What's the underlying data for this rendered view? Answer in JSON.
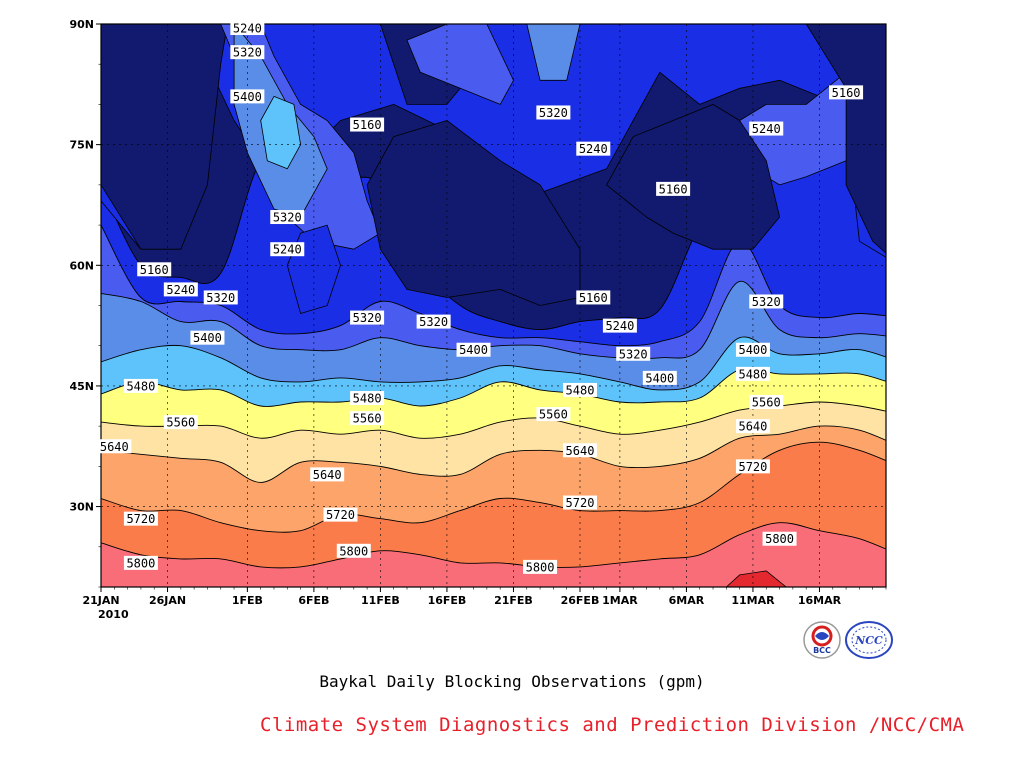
{
  "chart_data": {
    "type": "contour",
    "x_tick_labels": [
      "21JAN",
      "26JAN",
      "1FEB",
      "6FEB",
      "11FEB",
      "16FEB",
      "21FEB",
      "26FEB",
      "1MAR",
      "6MAR",
      "11MAR",
      "16MAR"
    ],
    "x_year_label": "2010",
    "y_tick_labels": [
      "30N",
      "45N",
      "60N",
      "75N",
      "90N"
    ],
    "xlim": [
      "2010-01-21",
      "2010-03-21"
    ],
    "ylim": [
      20,
      90
    ],
    "grid": true,
    "contour_levels": [
      5160,
      5240,
      5320,
      5400,
      5480,
      5560,
      5640,
      5720,
      5800,
      5880
    ],
    "level_colors": {
      "lt5160": "#111a6e",
      "5160-5240": "#1a2ee6",
      "5240-5320": "#4a5cf0",
      "5320-5400": "#5a8de8",
      "5400-5480": "#5ec3fa",
      "5480-5560": "#ffff80",
      "5560-5640": "#fee3a4",
      "5640-5720": "#fca46a",
      "5720-5800": "#fb7c4b",
      "5800-5880": "#f86d78",
      "gt5880": "#e42830"
    },
    "contour_labels": [
      {
        "value": "5240",
        "date": "2010-02-01",
        "lat": 89.5
      },
      {
        "value": "5320",
        "date": "2010-02-01",
        "lat": 86.5
      },
      {
        "value": "5400",
        "date": "2010-02-01",
        "lat": 81
      },
      {
        "value": "5160",
        "date": "2010-02-10",
        "lat": 77.5
      },
      {
        "value": "5320",
        "date": "2010-02-24",
        "lat": 79
      },
      {
        "value": "5240",
        "date": "2010-02-27",
        "lat": 74.5
      },
      {
        "value": "5160",
        "date": "2010-03-05",
        "lat": 69.5
      },
      {
        "value": "5240",
        "date": "2010-03-12",
        "lat": 77
      },
      {
        "value": "5160",
        "date": "2010-03-18",
        "lat": 81.5
      },
      {
        "value": "5320",
        "date": "2010-02-04",
        "lat": 66
      },
      {
        "value": "5240",
        "date": "2010-02-04",
        "lat": 62
      },
      {
        "value": "5160",
        "date": "2010-01-25",
        "lat": 59.5
      },
      {
        "value": "5240",
        "date": "2010-01-27",
        "lat": 57
      },
      {
        "value": "5320",
        "date": "2010-01-30",
        "lat": 56
      },
      {
        "value": "5320",
        "date": "2010-02-10",
        "lat": 53.5
      },
      {
        "value": "5160",
        "date": "2010-02-27",
        "lat": 56
      },
      {
        "value": "5240",
        "date": "2010-03-01",
        "lat": 52.5
      },
      {
        "value": "5320",
        "date": "2010-03-12",
        "lat": 55.5
      },
      {
        "value": "5400",
        "date": "2010-01-29",
        "lat": 51
      },
      {
        "value": "5320",
        "date": "2010-02-15",
        "lat": 53
      },
      {
        "value": "5400",
        "date": "2010-02-18",
        "lat": 49.5
      },
      {
        "value": "5320",
        "date": "2010-03-02",
        "lat": 49
      },
      {
        "value": "5400",
        "date": "2010-03-04",
        "lat": 46
      },
      {
        "value": "5400",
        "date": "2010-03-11",
        "lat": 49.5
      },
      {
        "value": "5480",
        "date": "2010-01-24",
        "lat": 45
      },
      {
        "value": "5480",
        "date": "2010-02-10",
        "lat": 43.5
      },
      {
        "value": "5480",
        "date": "2010-02-26",
        "lat": 44.5
      },
      {
        "value": "5480",
        "date": "2010-03-11",
        "lat": 46.5
      },
      {
        "value": "5560",
        "date": "2010-01-27",
        "lat": 40.5
      },
      {
        "value": "5560",
        "date": "2010-02-10",
        "lat": 41
      },
      {
        "value": "5560",
        "date": "2010-02-24",
        "lat": 41.5
      },
      {
        "value": "5560",
        "date": "2010-03-12",
        "lat": 43
      },
      {
        "value": "5640",
        "date": "2010-01-22",
        "lat": 37.5
      },
      {
        "value": "5640",
        "date": "2010-02-07",
        "lat": 34
      },
      {
        "value": "5640",
        "date": "2010-02-26",
        "lat": 37
      },
      {
        "value": "5640",
        "date": "2010-03-11",
        "lat": 40
      },
      {
        "value": "5720",
        "date": "2010-01-24",
        "lat": 28.5
      },
      {
        "value": "5720",
        "date": "2010-02-08",
        "lat": 29
      },
      {
        "value": "5720",
        "date": "2010-02-26",
        "lat": 30.5
      },
      {
        "value": "5720",
        "date": "2010-03-11",
        "lat": 35
      },
      {
        "value": "5800",
        "date": "2010-01-24",
        "lat": 23
      },
      {
        "value": "5800",
        "date": "2010-02-09",
        "lat": 24.5
      },
      {
        "value": "5800",
        "date": "2010-02-23",
        "lat": 22.5
      },
      {
        "value": "5800",
        "date": "2010-03-13",
        "lat": 26
      }
    ]
  },
  "caption": "Baykal Daily Blocking Observations (gpm)",
  "division": "Climate System Diagnostics and Prediction Division /NCC/CMA",
  "logos": {
    "bcc": {
      "name": "bcc-logo-icon",
      "text": "BCC"
    },
    "ncc": {
      "name": "ncc-logo-icon",
      "text": "NCC"
    }
  }
}
